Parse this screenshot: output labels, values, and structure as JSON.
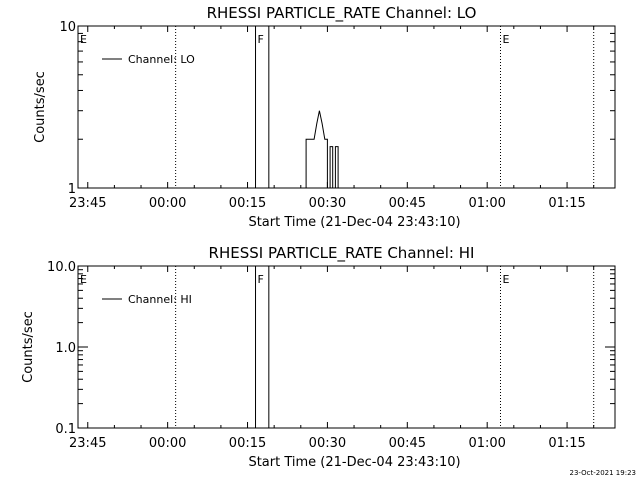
{
  "footer": {
    "timestamp": "23-Oct-2021 19:23"
  },
  "chart_data": [
    {
      "type": "line",
      "title": "RHESSI PARTICLE_RATE Channel: LO",
      "xlabel": "Start Time (21-Dec-04 23:43:10)",
      "ylabel": "Counts/sec",
      "y_scale": "log",
      "ylim": [
        1,
        10
      ],
      "y_ticks": [
        1,
        10
      ],
      "y_tick_labels": [
        "1",
        "10"
      ],
      "xlim": [
        "23:43:10",
        "01:24:00"
      ],
      "x_ticks": [
        "23:45",
        "00:00",
        "00:15",
        "00:30",
        "00:45",
        "01:00",
        "01:15"
      ],
      "grid": false,
      "legend": {
        "entries": [
          "Channel: LO"
        ],
        "position": "top-left"
      },
      "markers": [
        {
          "label": "E",
          "time": "23:43:10",
          "style": "dotted"
        },
        {
          "label": "",
          "time": "00:01:30",
          "style": "dotted"
        },
        {
          "label": "F",
          "time": "00:16:30",
          "style": "solid"
        },
        {
          "label": "",
          "time": "00:19:00",
          "style": "solid"
        },
        {
          "label": "E",
          "time": "01:02:30",
          "style": "dotted"
        },
        {
          "label": "",
          "time": "01:20:00",
          "style": "dotted"
        }
      ],
      "series": [
        {
          "name": "Channel: LO",
          "points": [
            [
              "00:26:00",
              1
            ],
            [
              "00:26:00",
              2
            ],
            [
              "00:27:30",
              2
            ],
            [
              "00:28:00",
              2.5
            ],
            [
              "00:28:30",
              3
            ],
            [
              "00:29:00",
              2.5
            ],
            [
              "00:29:30",
              2
            ],
            [
              "00:30:00",
              2
            ],
            [
              "00:30:00",
              1
            ],
            [
              "00:30:30",
              1
            ],
            [
              "00:30:30",
              1.8
            ],
            [
              "00:31:00",
              1.8
            ],
            [
              "00:31:00",
              1
            ],
            [
              "00:31:30",
              1
            ],
            [
              "00:31:30",
              1.8
            ],
            [
              "00:32:00",
              1.8
            ],
            [
              "00:32:00",
              1
            ]
          ]
        }
      ]
    },
    {
      "type": "line",
      "title": "RHESSI PARTICLE_RATE Channel: HI",
      "xlabel": "Start Time (21-Dec-04 23:43:10)",
      "ylabel": "Counts/sec",
      "y_scale": "log",
      "ylim": [
        0.1,
        10
      ],
      "y_ticks": [
        0.1,
        1.0,
        10.0
      ],
      "y_tick_labels": [
        "0.1",
        "1.0",
        "10.0"
      ],
      "xlim": [
        "23:43:10",
        "01:24:00"
      ],
      "x_ticks": [
        "23:45",
        "00:00",
        "00:15",
        "00:30",
        "00:45",
        "01:00",
        "01:15"
      ],
      "grid": false,
      "legend": {
        "entries": [
          "Channel: HI"
        ],
        "position": "top-left"
      },
      "markers": [
        {
          "label": "E",
          "time": "23:43:10",
          "style": "dotted"
        },
        {
          "label": "",
          "time": "00:01:30",
          "style": "dotted"
        },
        {
          "label": "F",
          "time": "00:16:30",
          "style": "solid"
        },
        {
          "label": "",
          "time": "00:19:00",
          "style": "solid"
        },
        {
          "label": "E",
          "time": "01:02:30",
          "style": "dotted"
        },
        {
          "label": "",
          "time": "01:20:00",
          "style": "dotted"
        }
      ],
      "series": [
        {
          "name": "Channel: HI",
          "points": []
        }
      ]
    }
  ]
}
